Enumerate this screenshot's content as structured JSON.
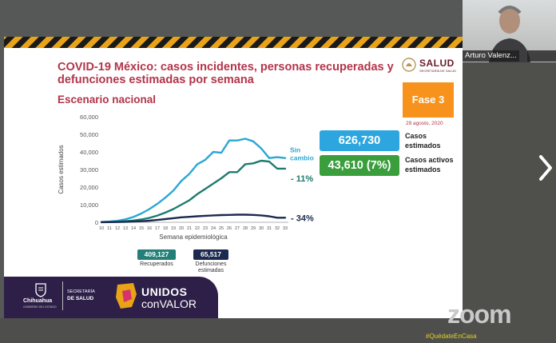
{
  "slide": {
    "title_line1": "COVID-19 México: casos incidentes, personas recuperadas y",
    "title_line2": "defunciones estimadas por semana",
    "subtitle": "Escenario nacional",
    "salud_logo_text": "SALUD",
    "salud_logo_subtext": "SECRETARÍA DE SALUD",
    "fase_label": "Fase 3",
    "date": "29 agosto, 2020",
    "kpis": [
      {
        "value": "626,730",
        "label_line1": "Casos",
        "label_line2": "estimados",
        "color": "#2da6df"
      },
      {
        "value": "43,610 (7%)",
        "label_line1": "Casos activos",
        "label_line2": "estimados",
        "color": "#3a9e3c"
      }
    ],
    "badges": {
      "recuperados_value": "409,127",
      "recuperados_label": "Recuperados",
      "defunciones_value": "65,517",
      "defunciones_label_line1": "Defunciones",
      "defunciones_label_line2": "estimadas"
    },
    "footer": {
      "chihuahua_name": "Chihuahua",
      "chihuahua_sub": "GOBIERNO DEL ESTADO",
      "secretaria": "SECRETARÍA",
      "de_salud": "DE SALUD",
      "unidos": "UNIDOS",
      "con_valor": "conVALOR"
    }
  },
  "chart_data": {
    "type": "line",
    "xlabel": "Semana epidemiológica",
    "ylabel": "Casos estimados",
    "ylim": [
      0,
      60000
    ],
    "yticks": [
      0,
      10000,
      20000,
      30000,
      40000,
      50000,
      60000
    ],
    "ytick_labels": [
      "0",
      "10,000",
      "20,000",
      "30,000",
      "40,000",
      "50,000",
      "60,000"
    ],
    "x": [
      10,
      11,
      12,
      13,
      14,
      15,
      16,
      17,
      18,
      19,
      20,
      21,
      22,
      23,
      24,
      25,
      26,
      27,
      28,
      29,
      30,
      31,
      32,
      33
    ],
    "grid": false,
    "series": [
      {
        "color": "#2ba7d4",
        "values": [
          200,
          400,
          800,
          1700,
          3000,
          5000,
          7500,
          10500,
          14000,
          18000,
          23500,
          27500,
          33000,
          35500,
          40000,
          39500,
          46500,
          46500,
          47500,
          46000,
          42000,
          36500,
          37000,
          36500
        ]
      },
      {
        "color": "#1e7b6e",
        "values": [
          100,
          200,
          350,
          600,
          1000,
          1600,
          2500,
          3800,
          5500,
          7500,
          10000,
          12500,
          16000,
          19000,
          22000,
          25000,
          28500,
          28500,
          33000,
          33500,
          35000,
          34500,
          30500,
          30500
        ]
      },
      {
        "color": "#1b2a4e",
        "values": [
          50,
          100,
          150,
          250,
          400,
          600,
          900,
          1300,
          1800,
          2300,
          2800,
          3100,
          3400,
          3700,
          3900,
          4100,
          4200,
          4300,
          4300,
          4200,
          3900,
          3400,
          2600,
          2600
        ]
      }
    ],
    "annotations": [
      {
        "text": "Sin",
        "series": 0
      },
      {
        "text": "cambio",
        "series": 0
      },
      {
        "text": "- 11%",
        "series": 1
      },
      {
        "text": "- 34%",
        "series": 2
      }
    ]
  },
  "chart_series_draw_weeks": [
    10,
    33
  ],
  "zoom": {
    "participant_name": "Arturo Valenz...",
    "watermark": "zoom",
    "bottom_text": "#QuédateEnCasa"
  },
  "colors": {
    "title": "#b2354a",
    "fase": "#f7921c",
    "footer_bg": "#2d1f47",
    "recuperados": "#237f78",
    "defunciones": "#1c2a4f"
  },
  "icons": {
    "next_slide": "chevron-right-icon",
    "salud_logo": "eagle-emblem-icon",
    "chihuahua_logo": "shield-icon",
    "unidos_logo": "state-map-icon"
  }
}
